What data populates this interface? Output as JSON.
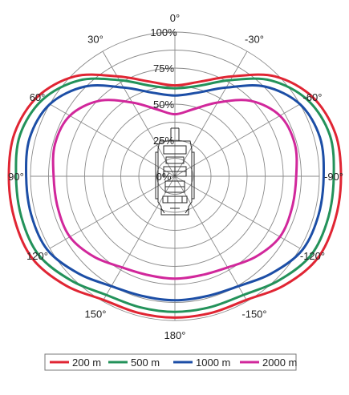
{
  "chart_data": {
    "type": "polar-line",
    "radial_ticks": [
      "0%",
      "25%",
      "50%",
      "75%",
      "100%"
    ],
    "angle_labels": [
      {
        "angle": 0,
        "text": "0°"
      },
      {
        "angle": 30,
        "text": "30°"
      },
      {
        "angle": -30,
        "text": "-30°"
      },
      {
        "angle": 60,
        "text": "60°"
      },
      {
        "angle": -60,
        "text": "-60°"
      },
      {
        "angle": 90,
        "text": "90°"
      },
      {
        "angle": -90,
        "text": "-90°"
      },
      {
        "angle": 120,
        "text": "120°"
      },
      {
        "angle": -120,
        "text": "-120°"
      },
      {
        "angle": 150,
        "text": "150°"
      },
      {
        "angle": -150,
        "text": "-150°"
      },
      {
        "angle": 180,
        "text": "180°"
      }
    ],
    "theta": [
      0,
      15,
      30,
      45,
      60,
      75,
      90,
      105,
      120,
      135,
      150,
      165,
      180,
      195,
      210,
      225,
      240,
      255,
      270,
      285,
      300,
      315,
      330,
      345
    ],
    "series": [
      {
        "name": "200 m",
        "color": "#e02533",
        "values": [
          63,
          68,
          80,
          98,
          110,
          115,
          115,
          115,
          114,
          107,
          99,
          98,
          98,
          98,
          99,
          107,
          114,
          115,
          115,
          115,
          110,
          98,
          80,
          68
        ]
      },
      {
        "name": "500 m",
        "color": "#23925a",
        "values": [
          61,
          65,
          77,
          94,
          106,
          111,
          110,
          110,
          109,
          102,
          95,
          94,
          94,
          94,
          95,
          102,
          109,
          110,
          110,
          111,
          106,
          94,
          77,
          65
        ]
      },
      {
        "name": "1000 m",
        "color": "#1c4ea6",
        "values": [
          56,
          60,
          71,
          88,
          100,
          104,
          103,
          103,
          102,
          95,
          88,
          86,
          86,
          86,
          88,
          95,
          102,
          103,
          103,
          104,
          100,
          88,
          71,
          60
        ]
      },
      {
        "name": "2000 m",
        "color": "#d1279b",
        "values": [
          43,
          48,
          59,
          74,
          84,
          86,
          84,
          84,
          84,
          79,
          73,
          71,
          71,
          71,
          73,
          79,
          84,
          84,
          84,
          86,
          84,
          74,
          59,
          48
        ]
      }
    ]
  }
}
